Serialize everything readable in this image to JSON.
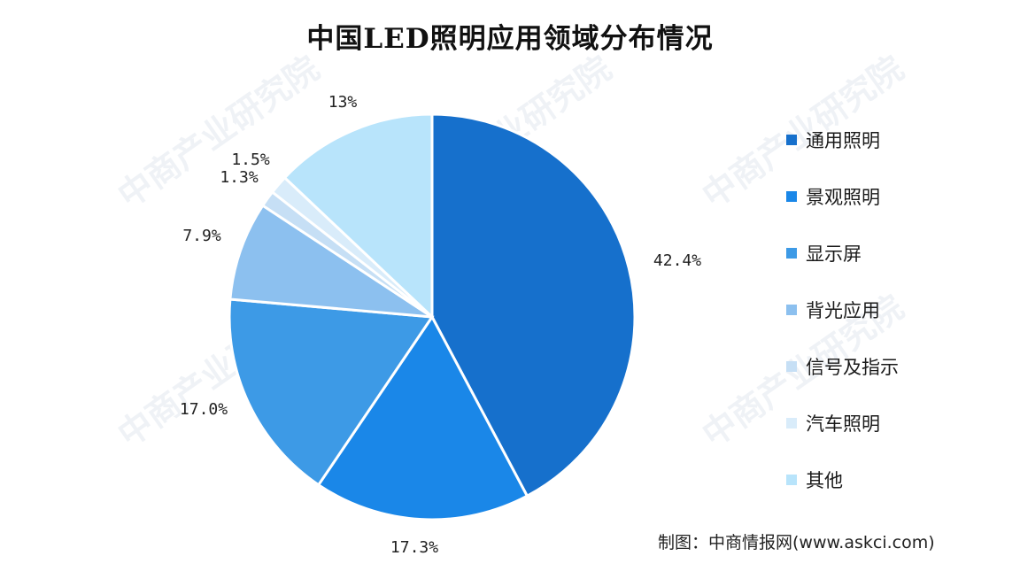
{
  "title": "中国LED照明应用领域分布情况",
  "source": "制图：中商情报网(www.askci.com)",
  "watermark": "中商产业研究院",
  "chart_data": {
    "type": "pie",
    "title": "中国LED照明应用领域分布情况",
    "categories": [
      "通用照明",
      "景观照明",
      "显示屏",
      "背光应用",
      "信号及指示",
      "汽车照明",
      "其他"
    ],
    "values": [
      42.4,
      17.3,
      17.0,
      7.9,
      1.3,
      1.5,
      13
    ],
    "labels": [
      "42.4%",
      "17.3%",
      "17.0%",
      "7.9%",
      "1.3%",
      "1.5%",
      "13%"
    ],
    "colors": [
      "#1670cc",
      "#1a87e8",
      "#3d9ae6",
      "#8cc0ef",
      "#c6dff5",
      "#d9ecfa",
      "#b8e4fb"
    ],
    "legend_position": "right"
  }
}
